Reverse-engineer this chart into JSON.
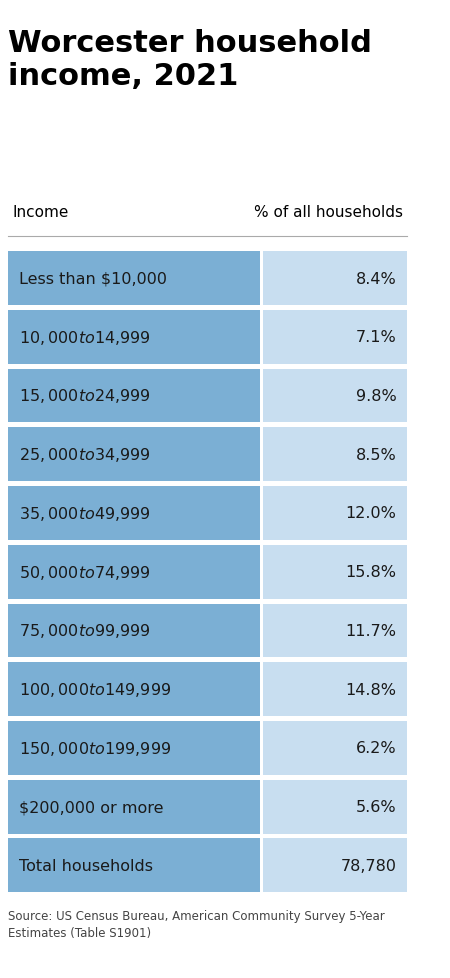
{
  "title": "Worcester household\nincome, 2021",
  "col_header_left": "Income",
  "col_header_right": "% of all households",
  "rows": [
    {
      "label": "Less than $10,000",
      "value": "8.4%"
    },
    {
      "label": "$10,000 to $14,999",
      "value": "7.1%"
    },
    {
      "label": "$15,000 to $24,999",
      "value": "9.8%"
    },
    {
      "label": "$25,000 to $34,999",
      "value": "8.5%"
    },
    {
      "label": "$35,000 to $49,999",
      "value": "12.0%"
    },
    {
      "label": "$50,000 to $74,999",
      "value": "15.8%"
    },
    {
      "label": "$75,000 to $99,999",
      "value": "11.7%"
    },
    {
      "label": "$100,000 to $149,999",
      "value": "14.8%"
    },
    {
      "label": "$150,000 to $199,999",
      "value": "6.2%"
    },
    {
      "label": "$200,000 or more",
      "value": "5.6%"
    },
    {
      "label": "Total households",
      "value": "78,780"
    }
  ],
  "color_left": "#7BAFD4",
  "color_right": "#C8DEF0",
  "background": "#ffffff",
  "title_color": "#000000",
  "header_color": "#000000",
  "text_color": "#1a1a1a",
  "source_text": "Source: US Census Bureau, American Community Survey 5-Year\nEstimates (Table S1901)",
  "divider_color": "#aaaaaa"
}
